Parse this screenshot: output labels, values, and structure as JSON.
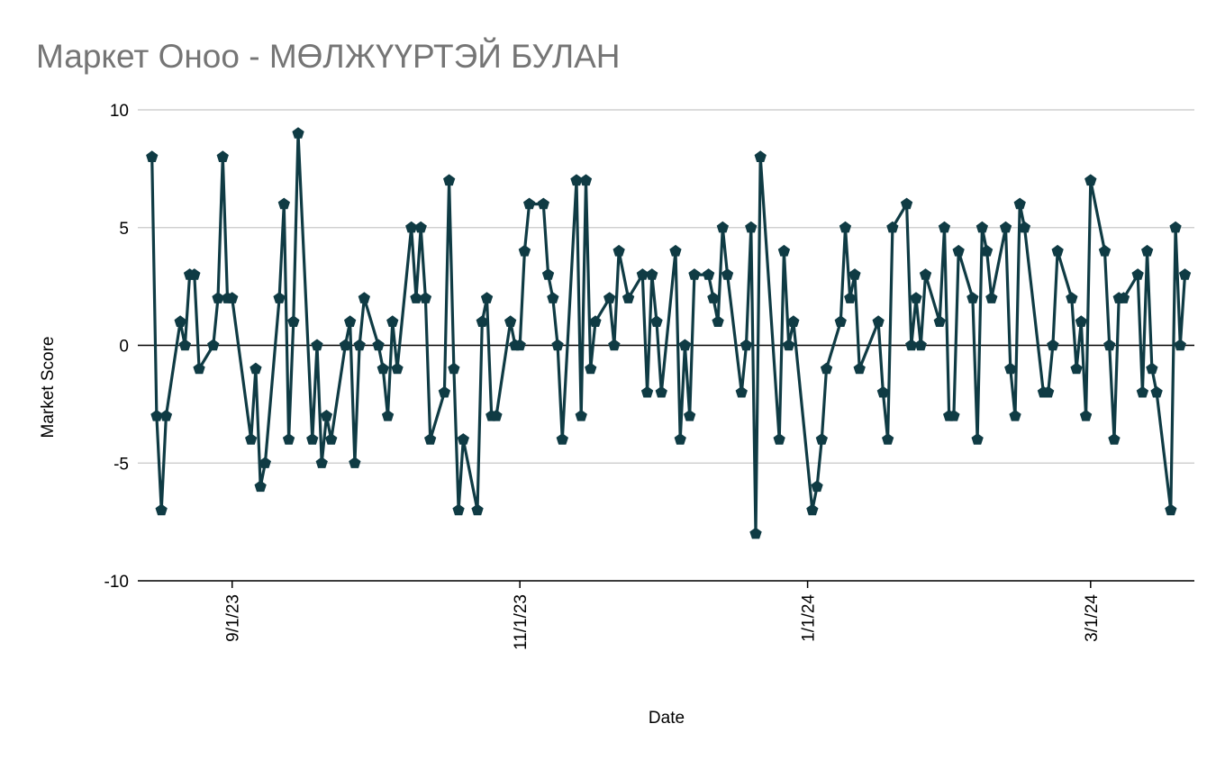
{
  "chart_data": {
    "type": "line",
    "title": "Маркет Оноо - МӨЛЖҮҮРТЭЙ БУЛАН",
    "x_label": "Date",
    "y_label": "Market Score",
    "x": [
      "8/15/23",
      "8/16/23",
      "8/17/23",
      "8/18/23",
      "8/21/23",
      "8/22/23",
      "8/23/23",
      "8/24/23",
      "8/25/23",
      "8/28/23",
      "8/29/23",
      "8/30/23",
      "8/31/23",
      "9/1/23",
      "9/5/23",
      "9/6/23",
      "9/7/23",
      "9/8/23",
      "9/11/23",
      "9/12/23",
      "9/13/23",
      "9/14/23",
      "9/15/23",
      "9/18/23",
      "9/19/23",
      "9/20/23",
      "9/21/23",
      "9/22/23",
      "9/25/23",
      "9/26/23",
      "9/27/23",
      "9/28/23",
      "9/29/23",
      "10/2/23",
      "10/3/23",
      "10/4/23",
      "10/5/23",
      "10/6/23",
      "10/9/23",
      "10/10/23",
      "10/11/23",
      "10/12/23",
      "10/13/23",
      "10/16/23",
      "10/17/23",
      "10/18/23",
      "10/19/23",
      "10/20/23",
      "10/23/23",
      "10/24/23",
      "10/25/23",
      "10/26/23",
      "10/27/23",
      "10/30/23",
      "10/31/23",
      "11/1/23",
      "11/2/23",
      "11/3/23",
      "11/6/23",
      "11/7/23",
      "11/8/23",
      "11/9/23",
      "11/10/23",
      "11/13/23",
      "11/14/23",
      "11/15/23",
      "11/16/23",
      "11/17/23",
      "11/20/23",
      "11/21/23",
      "11/22/23",
      "11/24/23",
      "11/27/23",
      "11/28/23",
      "11/29/23",
      "11/30/23",
      "12/1/23",
      "12/4/23",
      "12/5/23",
      "12/6/23",
      "12/7/23",
      "12/8/23",
      "12/11/23",
      "12/12/23",
      "12/13/23",
      "12/14/23",
      "12/15/23",
      "12/18/23",
      "12/19/23",
      "12/20/23",
      "12/21/23",
      "12/22/23",
      "12/26/23",
      "12/27/23",
      "12/28/23",
      "12/29/23",
      "1/2/24",
      "1/3/24",
      "1/4/24",
      "1/5/24",
      "1/8/24",
      "1/9/24",
      "1/10/24",
      "1/11/24",
      "1/12/24",
      "1/16/24",
      "1/17/24",
      "1/18/24",
      "1/19/24",
      "1/22/24",
      "1/23/24",
      "1/24/24",
      "1/25/24",
      "1/26/24",
      "1/29/24",
      "1/30/24",
      "1/31/24",
      "2/1/24",
      "2/2/24",
      "2/5/24",
      "2/6/24",
      "2/7/24",
      "2/8/24",
      "2/9/24",
      "2/12/24",
      "2/13/24",
      "2/14/24",
      "2/15/24",
      "2/16/24",
      "2/20/24",
      "2/21/24",
      "2/22/24",
      "2/23/24",
      "2/26/24",
      "2/27/24",
      "2/28/24",
      "2/29/24",
      "3/1/24",
      "3/4/24",
      "3/5/24",
      "3/6/24",
      "3/7/24",
      "3/8/24",
      "3/11/24",
      "3/12/24",
      "3/13/24",
      "3/14/24",
      "3/15/24",
      "3/18/24",
      "3/19/24",
      "3/20/24",
      "3/21/24"
    ],
    "values": [
      8,
      -3,
      -7,
      -3,
      1,
      0,
      3,
      3,
      -1,
      0,
      2,
      8,
      2,
      2,
      -4,
      -1,
      -6,
      -5,
      2,
      6,
      -4,
      1,
      9,
      -4,
      0,
      -5,
      -3,
      -4,
      0,
      1,
      -5,
      0,
      2,
      0,
      -1,
      -3,
      1,
      -1,
      5,
      2,
      5,
      2,
      -4,
      -2,
      7,
      -1,
      -7,
      -4,
      -7,
      1,
      2,
      -3,
      -3,
      1,
      0,
      0,
      4,
      6,
      6,
      3,
      2,
      0,
      -4,
      7,
      -3,
      7,
      -1,
      1,
      2,
      0,
      4,
      2,
      3,
      -2,
      3,
      1,
      -2,
      4,
      -4,
      0,
      -3,
      3,
      3,
      2,
      1,
      5,
      3,
      -2,
      0,
      5,
      -8,
      8,
      -4,
      4,
      0,
      1,
      -7,
      -6,
      -4,
      -1,
      1,
      5,
      2,
      3,
      -1,
      1,
      -2,
      -4,
      5,
      6,
      0,
      2,
      0,
      3,
      1,
      5,
      -3,
      -3,
      4,
      2,
      -4,
      5,
      4,
      2,
      5,
      -1,
      -3,
      6,
      5,
      -2,
      -2,
      0,
      4,
      2,
      -1,
      1,
      -3,
      7,
      4,
      0,
      -4,
      2,
      2,
      3,
      -2,
      4,
      -1,
      -2,
      -7,
      5,
      0,
      3
    ],
    "color": "#0f3b44",
    "xlim": [
      "8/12/23",
      "3/23/24"
    ],
    "xticks": [
      "9/1/23",
      "11/1/23",
      "1/1/24",
      "3/1/24"
    ],
    "ylim": [
      -10,
      10
    ],
    "yticks": [
      -10,
      -5,
      0,
      5,
      10
    ],
    "grid": true
  }
}
